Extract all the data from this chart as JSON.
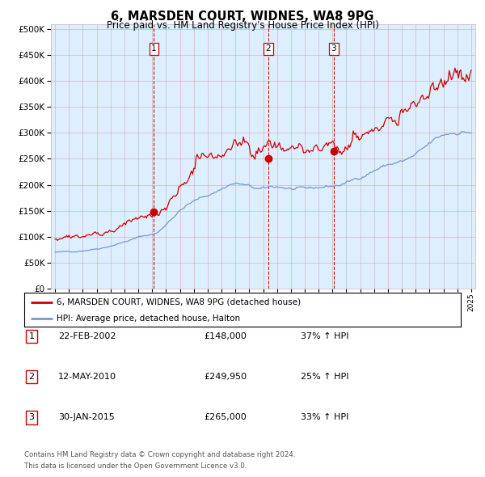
{
  "title": "6, MARSDEN COURT, WIDNES, WA8 9PG",
  "subtitle": "Price paid vs. HM Land Registry's House Price Index (HPI)",
  "legend_line1": "6, MARSDEN COURT, WIDNES, WA8 9PG (detached house)",
  "legend_line2": "HPI: Average price, detached house, Halton",
  "footnote1": "Contains HM Land Registry data © Crown copyright and database right 2024.",
  "footnote2": "This data is licensed under the Open Government Licence v3.0.",
  "transactions": [
    {
      "num": 1,
      "date": "22-FEB-2002",
      "price": 148000,
      "hpi_pct": "37% ↑ HPI",
      "date_val": 2002.13
    },
    {
      "num": 2,
      "date": "12-MAY-2010",
      "price": 249950,
      "hpi_pct": "25% ↑ HPI",
      "date_val": 2010.36
    },
    {
      "num": 3,
      "date": "30-JAN-2015",
      "price": 265000,
      "hpi_pct": "33% ↑ HPI",
      "date_val": 2015.08
    }
  ],
  "hpi_color": "#7799cc",
  "price_color": "#cc0000",
  "dot_color": "#cc0000",
  "vline_color": "#cc0000",
  "grid_color": "#cc9999",
  "plot_bg": "#ddeeff",
  "ylim": [
    0,
    510000
  ],
  "yticks": [
    0,
    50000,
    100000,
    150000,
    200000,
    250000,
    300000,
    350000,
    400000,
    450000,
    500000
  ],
  "x_start_year": 1995,
  "x_end_year": 2025
}
